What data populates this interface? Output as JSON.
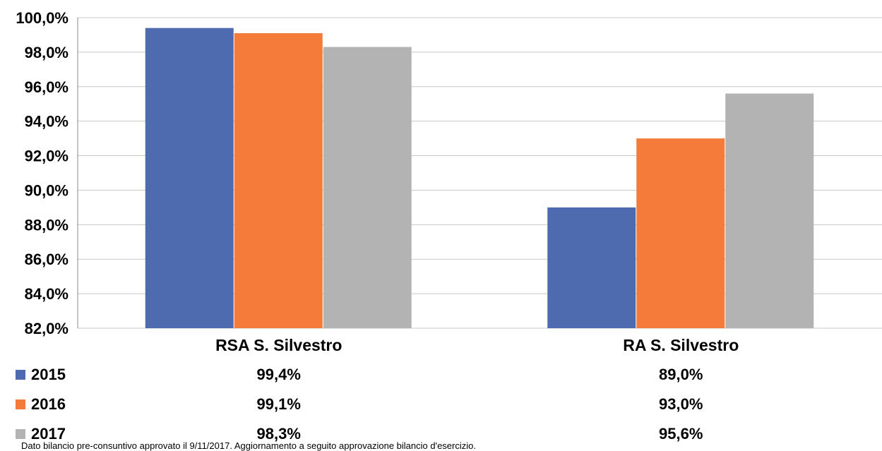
{
  "chart_data": {
    "type": "bar",
    "categories": [
      "RSA S. Silvestro",
      "RA S. Silvestro"
    ],
    "series": [
      {
        "name": "2015",
        "values": [
          99.4,
          89.0
        ],
        "labels": [
          "99,4%",
          "89,0%"
        ],
        "color": "#4f6bb0"
      },
      {
        "name": "2016",
        "values": [
          99.1,
          93.0
        ],
        "labels": [
          "99,1%",
          "93,0%"
        ],
        "color": "#f47b3a"
      },
      {
        "name": "2017",
        "values": [
          98.3,
          95.6
        ],
        "labels": [
          "98,3%",
          "95,6%"
        ],
        "color": "#b3b3b3"
      }
    ],
    "ylim": [
      82,
      100
    ],
    "yticks": [
      82,
      84,
      86,
      88,
      90,
      92,
      94,
      96,
      98,
      100
    ],
    "ytick_labels": [
      "82,0%",
      "84,0%",
      "86,0%",
      "88,0%",
      "90,0%",
      "92,0%",
      "94,0%",
      "96,0%",
      "98,0%",
      "100,0%"
    ],
    "grid": true,
    "legend": "data-table-below"
  },
  "footnote": "Dato bilancio pre-consuntivo approvato il 9/11/2017. Aggiornamento a seguito approvazione bilancio d'esercizio."
}
